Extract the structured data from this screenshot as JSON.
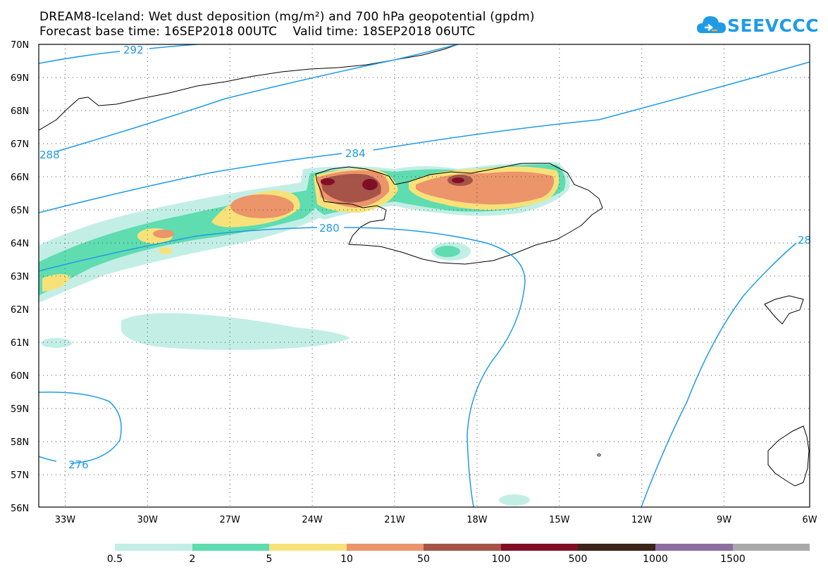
{
  "header": {
    "title_line1": "DREAM8-Iceland: Wet dust deposition (mg/m²) and 700 hPa geopotential (gpdm)",
    "title_line2": "Forecast base time: 16SEP2018 00UTC    Valid time: 18SEP2018 06UTC"
  },
  "logo": {
    "text": "SEEVCCC",
    "icon": "cloud-icon",
    "color": "#1f9be6"
  },
  "map": {
    "lat_labels": [
      "70N",
      "69N",
      "68N",
      "67N",
      "66N",
      "65N",
      "64N",
      "63N",
      "62N",
      "61N",
      "60N",
      "59N",
      "58N",
      "57N",
      "56N"
    ],
    "lon_labels": [
      "33W",
      "30W",
      "27W",
      "24W",
      "21W",
      "18W",
      "15W",
      "12W",
      "9W",
      "6W"
    ],
    "contour_labels": [
      "292",
      "288",
      "284",
      "280",
      "276",
      "28"
    ],
    "contour_color": "#1f9be6",
    "grid": "dotted"
  },
  "legend": {
    "colors": [
      "#c2eee6",
      "#5fdcb0",
      "#f7e27a",
      "#ec946a",
      "#a65348",
      "#800f25",
      "#3b2418",
      "#8b6da0",
      "#a9a9a9"
    ],
    "labels": [
      "0.5",
      "2",
      "5",
      "10",
      "50",
      "100",
      "500",
      "1000",
      "1500"
    ]
  }
}
